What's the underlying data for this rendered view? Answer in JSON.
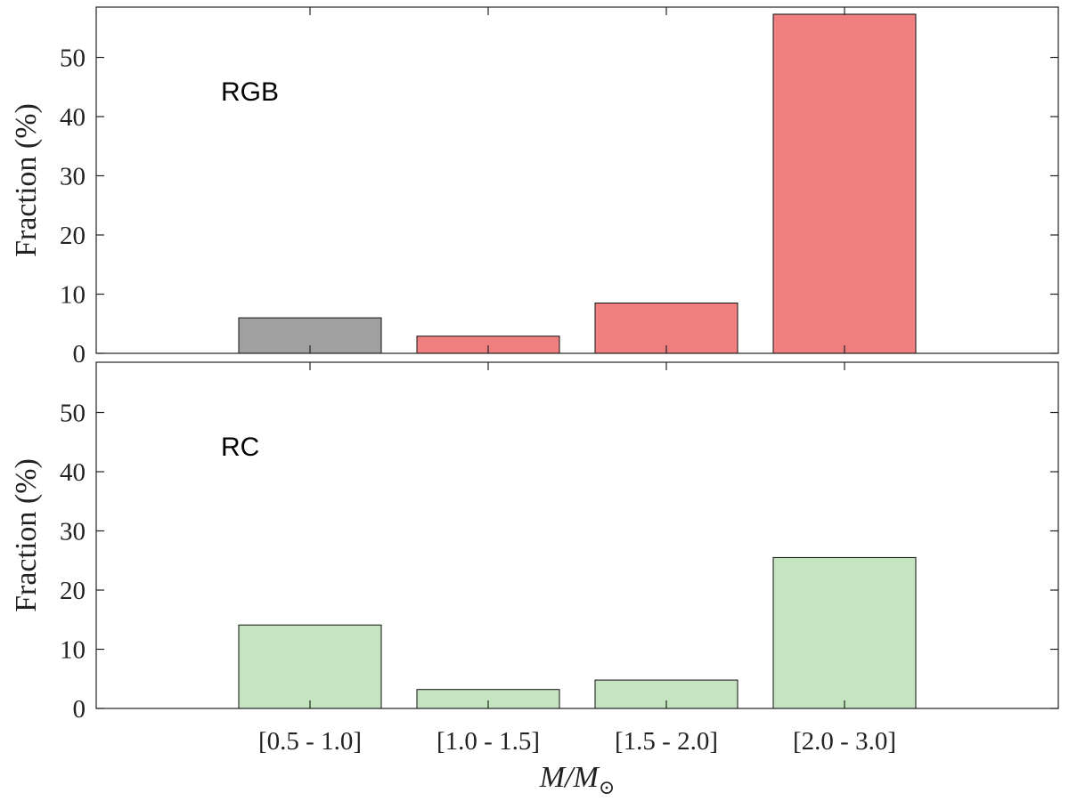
{
  "chart_data": {
    "type": "bar",
    "categories": [
      "[0.5 - 1.0]",
      "[1.0 - 1.5]",
      "[1.5 - 2.0]",
      "[2.0 - 3.0]"
    ],
    "xlabel_base": "M/M",
    "xlabel_sub": "⊙",
    "ylim": [
      0,
      58.5
    ],
    "yticks": [
      0,
      10,
      20,
      30,
      40,
      50
    ],
    "grid": false,
    "panels": [
      {
        "id": "rgb",
        "label": "RGB",
        "ylabel": "Fraction (%)",
        "values": [
          6.0,
          2.9,
          8.5,
          57.3
        ],
        "colors": [
          "#a0a0a0",
          "#f08080",
          "#f08080",
          "#f08080"
        ]
      },
      {
        "id": "rc",
        "label": "RC",
        "ylabel": "Fraction (%)",
        "values": [
          14.1,
          3.2,
          4.8,
          25.5
        ],
        "colors": [
          "#c5e5c1",
          "#c5e5c1",
          "#c5e5c1",
          "#c5e5c1"
        ]
      }
    ]
  }
}
